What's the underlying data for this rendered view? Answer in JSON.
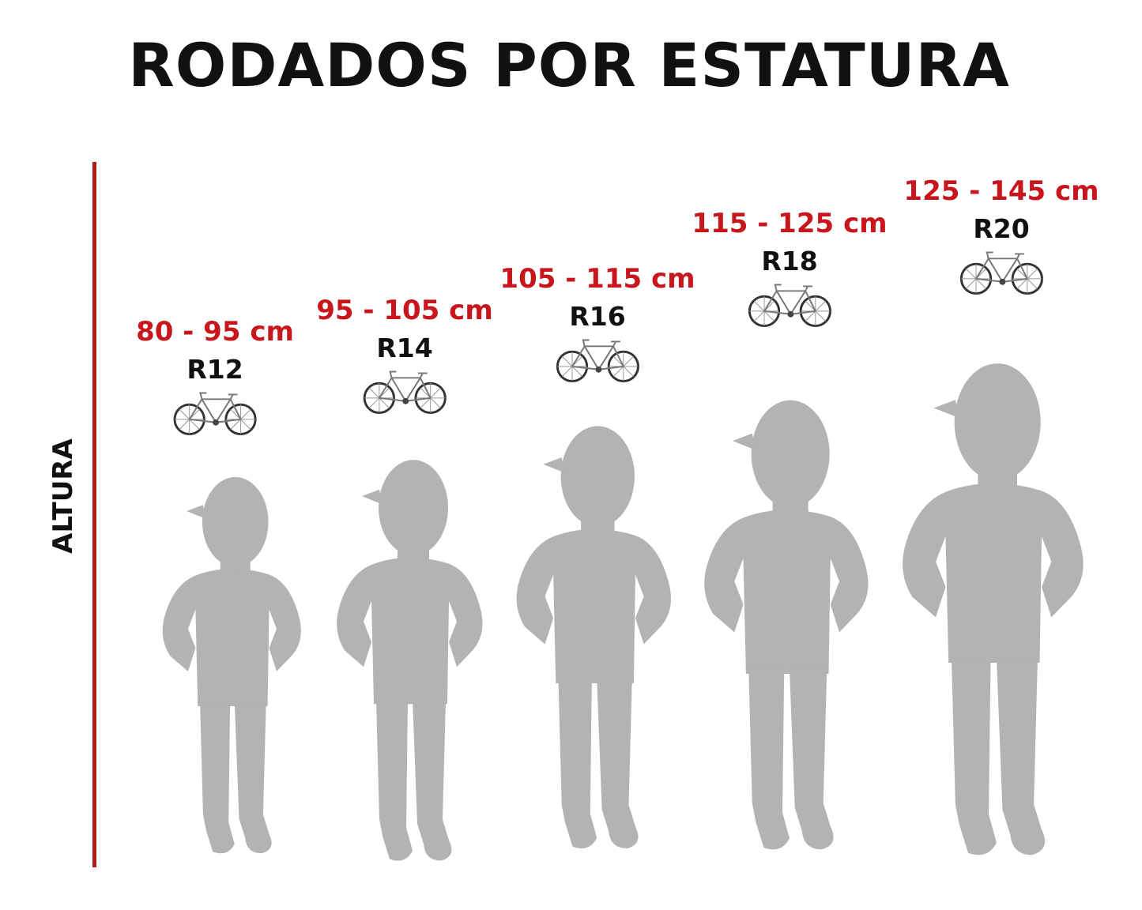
{
  "title": "RODADOS POR ESTATURA",
  "axis_label": "ALTURA",
  "colors": {
    "accent": "#c8161d",
    "axis": "#b01c1c",
    "silhouette": "#b3b3b3"
  },
  "groups": [
    {
      "range": "80 - 95 cm",
      "size": "R12",
      "icon": "bicycle-icon"
    },
    {
      "range": "95 - 105 cm",
      "size": "R14",
      "icon": "bicycle-icon"
    },
    {
      "range": "105 - 115 cm",
      "size": "R16",
      "icon": "bicycle-icon"
    },
    {
      "range": "115 - 125 cm",
      "size": "R18",
      "icon": "bicycle-icon"
    },
    {
      "range": "125 - 145 cm",
      "size": "R20",
      "icon": "bicycle-icon"
    }
  ]
}
